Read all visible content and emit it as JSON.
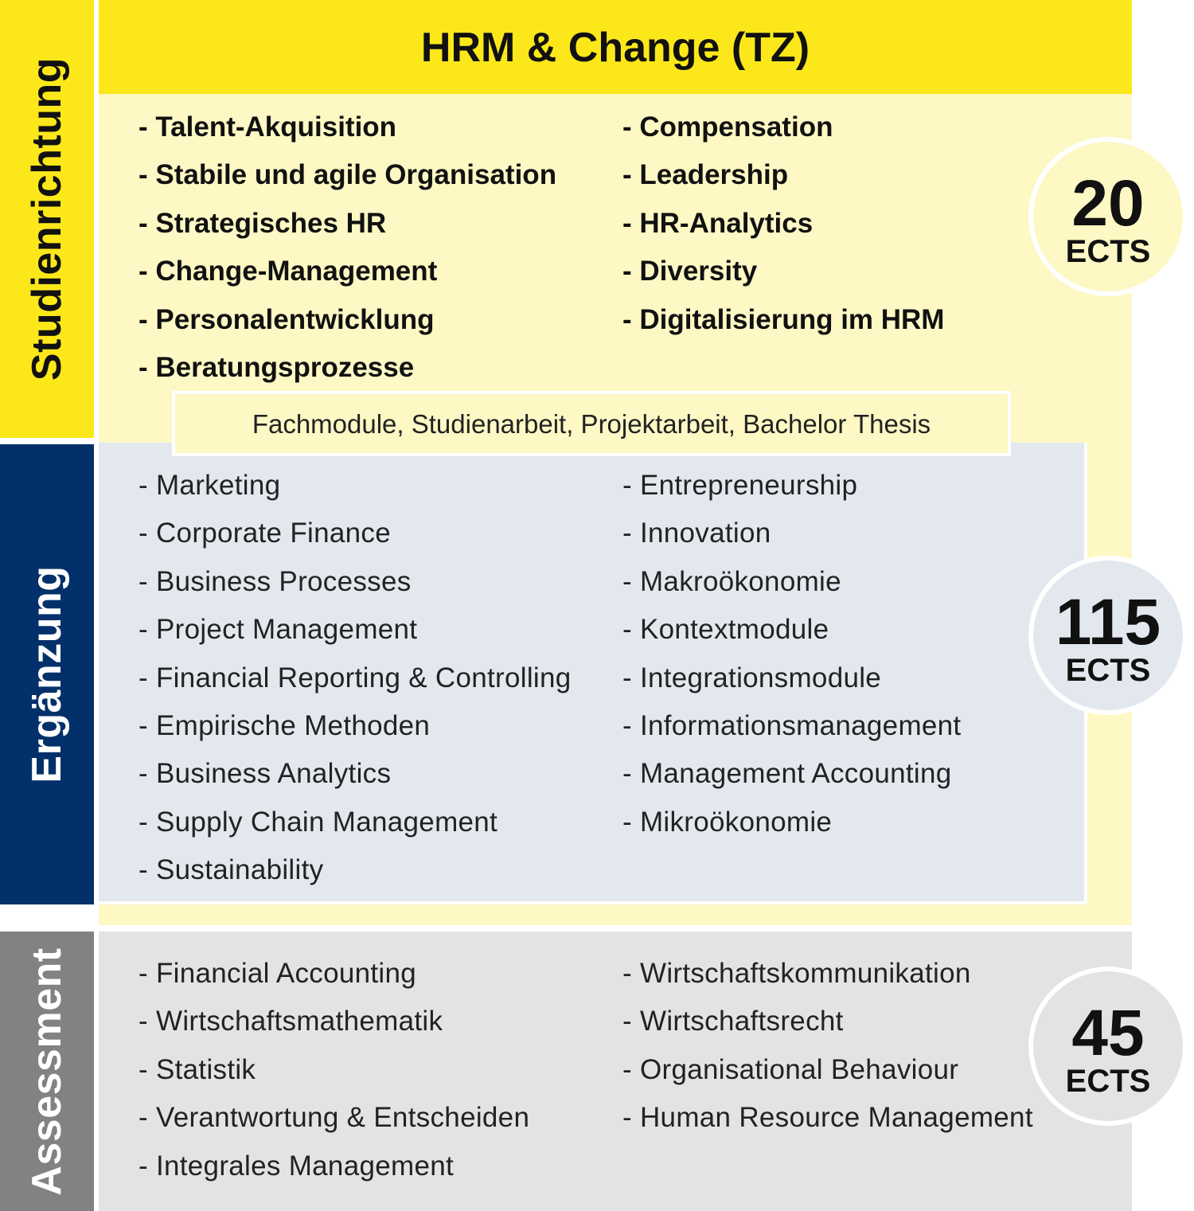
{
  "colors": {
    "yellow": "#fce81a",
    "yellow_light": "#fdf8c4",
    "navy": "#02306a",
    "blue_light": "#e3e8ef",
    "grey": "#828282",
    "grey_light": "#e3e3e3"
  },
  "title": "HRM & Change (TZ)",
  "bands": {
    "studienrichtung": "Studienrichtung",
    "ergaenzung": "Ergänzung",
    "assessment": "Assessment"
  },
  "studienrichtung": {
    "left": [
      "- Talent-Akquisition",
      "- Stabile und agile Organisation",
      "- Strategisches HR",
      "- Change-Management",
      "- Personalentwicklung",
      "- Beratungsprozesse"
    ],
    "right": [
      "- Compensation",
      "- Leadership",
      "- HR-Analytics",
      "- Diversity",
      "- Digitalisierung im HRM"
    ],
    "badge_value": "20",
    "badge_unit": "ECTS"
  },
  "fachmodule_label": "Fachmodule, Studienarbeit, Projektarbeit, Bachelor Thesis",
  "ergaenzung": {
    "left": [
      "- Marketing",
      "- Corporate Finance",
      "- Business Processes",
      "- Project Management",
      "- Financial Reporting & Controlling",
      "- Empirische Methoden",
      "- Business Analytics",
      "- Supply Chain Management",
      "- Sustainability"
    ],
    "right": [
      "- Entrepreneurship",
      "- Innovation",
      "- Makroökonomie",
      "- Kontextmodule",
      "- Integrationsmodule",
      "- Informationsmanagement",
      "- Management Accounting",
      "- Mikroökonomie"
    ],
    "badge_value": "115",
    "badge_unit": "ECTS"
  },
  "assessment": {
    "left": [
      "- Financial Accounting",
      "- Wirtschaftsmathematik",
      "- Statistik",
      "- Verantwortung & Entscheiden",
      "- Integrales Management"
    ],
    "right": [
      "- Wirtschaftskommunikation",
      "- Wirtschaftsrecht",
      "- Organisational Behaviour",
      "- Human Resource Management"
    ],
    "badge_value": "45",
    "badge_unit": "ECTS"
  }
}
